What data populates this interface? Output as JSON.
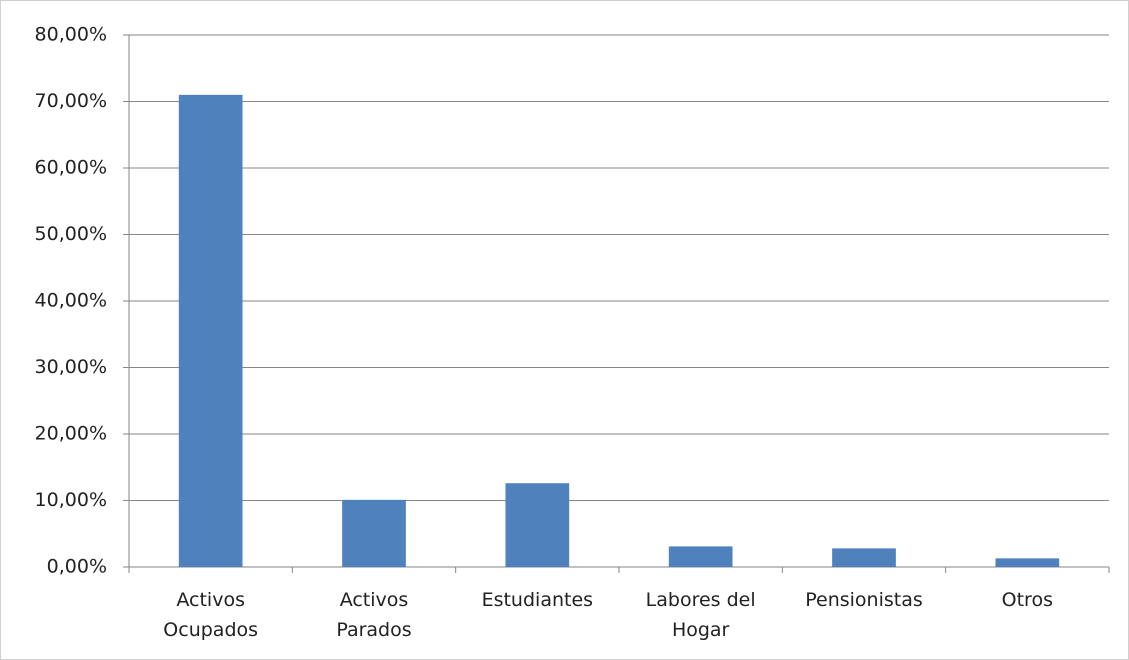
{
  "chart_data": {
    "type": "bar",
    "categories": [
      "Activos Ocupados",
      "Activos Parados",
      "Estudiantes",
      "Labores del Hogar",
      "Pensionistas",
      "Otros"
    ],
    "values": [
      71.0,
      10.1,
      12.6,
      3.1,
      2.8,
      1.3
    ],
    "color": "#4f81bd",
    "ylim": [
      0,
      80
    ],
    "yticks": [
      {
        "value": 0,
        "label": "0,00%"
      },
      {
        "value": 10,
        "label": "10,00%"
      },
      {
        "value": 20,
        "label": "20,00%"
      },
      {
        "value": 30,
        "label": "30,00%"
      },
      {
        "value": 40,
        "label": "40,00%"
      },
      {
        "value": 50,
        "label": "50,00%"
      },
      {
        "value": 60,
        "label": "60,00%"
      },
      {
        "value": 70,
        "label": "70,00%"
      },
      {
        "value": 80,
        "label": "80,00%"
      }
    ],
    "grid": true
  }
}
